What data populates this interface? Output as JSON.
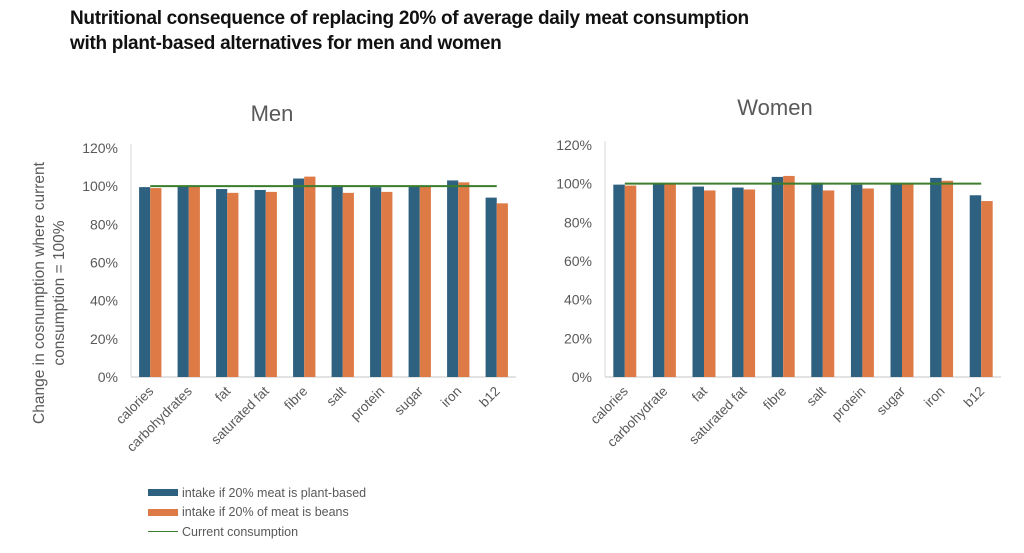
{
  "title_lines": [
    "Nutritional consequence of replacing 20% of average daily meat consumption",
    "with plant-based alternatives for men and women"
  ],
  "colors": {
    "plant_based": "#2e6080",
    "beans": "#dd7a45",
    "current": "#3a7d2c",
    "axis_text": "#595959",
    "axis_line": "#d9d9d9"
  },
  "legend": [
    {
      "label": "intake if 20% meat is plant-based",
      "type": "bar",
      "color": "#2e6080"
    },
    {
      "label": "intake if 20% of meat is beans",
      "type": "bar",
      "color": "#dd7a45"
    },
    {
      "label": "Current consumption",
      "type": "line",
      "color": "#3a7d2c"
    }
  ],
  "shared_ylabel_lines": [
    "Change in cosnumption where current",
    "consumption = 100%"
  ],
  "chart_data": [
    {
      "type": "bar",
      "title": "Men",
      "categories": [
        "calories",
        "carbohydrates",
        "fat",
        "saturated fat",
        "fibre",
        "salt",
        "protein",
        "sugar",
        "iron",
        "b12"
      ],
      "series": [
        {
          "name": "intake if 20% meat is plant-based",
          "values": [
            99.5,
            100,
            98.5,
            98,
            104,
            100.5,
            99.5,
            100,
            103,
            94
          ]
        },
        {
          "name": "intake if 20% of meat is beans",
          "values": [
            99,
            100,
            96.5,
            97,
            105,
            96.5,
            97,
            100,
            102,
            91
          ]
        },
        {
          "name": "Current consumption",
          "type": "line",
          "values": [
            100,
            100,
            100,
            100,
            100,
            100,
            100,
            100,
            100,
            100
          ]
        }
      ],
      "ylabel": "Change in cosnumption where current consumption = 100%",
      "xlabel": "",
      "ylim": [
        0,
        120
      ],
      "yticks": [
        "0%",
        "20%",
        "40%",
        "60%",
        "80%",
        "100%",
        "120%"
      ],
      "grid": false,
      "legend_position": "bottom-left"
    },
    {
      "type": "bar",
      "title": "Women",
      "categories": [
        "calories",
        "carbohydrate",
        "fat",
        "saturated fat",
        "fibre",
        "salt",
        "protein",
        "sugar",
        "iron",
        "b12"
      ],
      "series": [
        {
          "name": "intake if 20% meat is plant-based",
          "values": [
            99.5,
            100,
            98.5,
            98,
            103.5,
            100.5,
            99.5,
            100,
            103,
            94
          ]
        },
        {
          "name": "intake if 20% of meat is beans",
          "values": [
            99,
            100,
            96.5,
            97,
            104,
            96.5,
            97.5,
            100,
            101.5,
            91
          ]
        },
        {
          "name": "Current consumption",
          "type": "line",
          "values": [
            100,
            100,
            100,
            100,
            100,
            100,
            100,
            100,
            100,
            100
          ]
        }
      ],
      "xlabel": "",
      "ylabel": "",
      "ylim": [
        0,
        120
      ],
      "yticks": [
        "0%",
        "20%",
        "40%",
        "60%",
        "80%",
        "100%",
        "120%"
      ],
      "grid": false,
      "legend_position": "bottom-left"
    }
  ]
}
